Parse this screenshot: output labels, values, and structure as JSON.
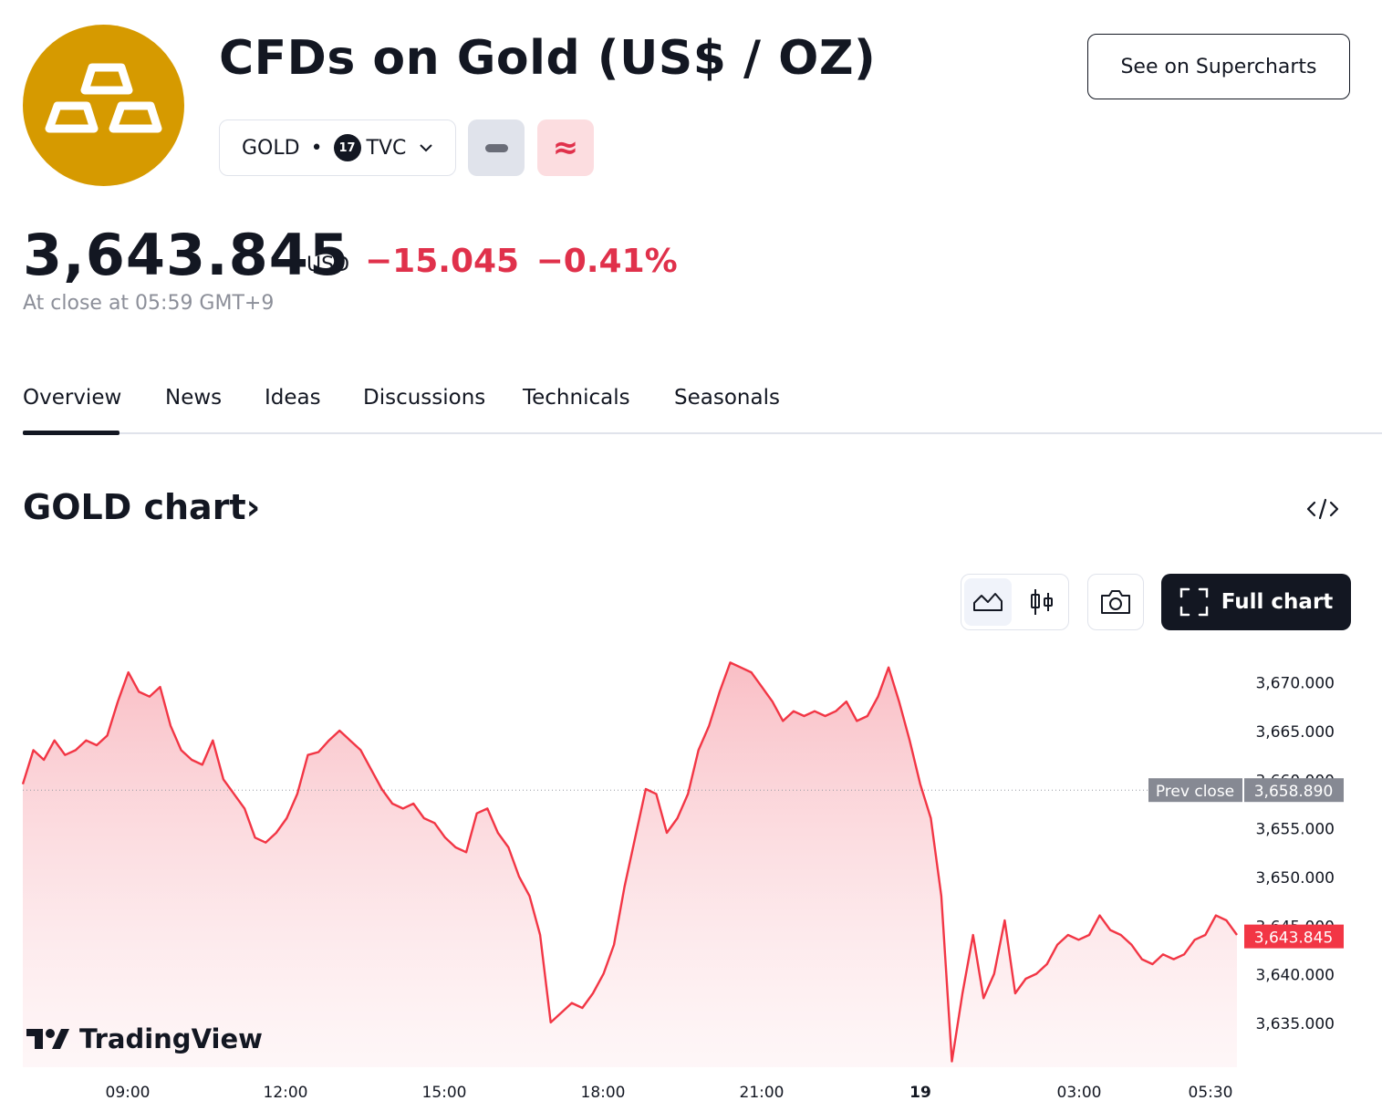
{
  "header": {
    "title": "CFDs on Gold (US$ / OZ)",
    "supercharts_label": "See on Supercharts",
    "symbol": "GOLD",
    "exchange": "TVC",
    "logo_icon": "gold-bars-icon",
    "logo_color": "#D69A00"
  },
  "quote": {
    "price": "3,643.845",
    "currency": "USD",
    "change": "−15.045",
    "change_pct": "−0.41%",
    "close_note": "At close at 05:59 GMT+9",
    "negative_color": "#e0314b"
  },
  "tabs": [
    "Overview",
    "News",
    "Ideas",
    "Discussions",
    "Technicals",
    "Seasonals"
  ],
  "active_tab": "Overview",
  "chart_section": {
    "title": "GOLD chart",
    "title_arrow": "›",
    "full_chart_label": "Full chart",
    "watermark": "TradingView"
  },
  "chart_data": {
    "type": "area",
    "x_ticks": [
      "09:00",
      "12:00",
      "15:00",
      "18:00",
      "21:00",
      "19",
      "03:00",
      "05:30"
    ],
    "y_ticks": [
      "3,670.000",
      "3,665.000",
      "3,660.000",
      "3,655.000",
      "3,650.000",
      "3,645.000",
      "3,640.000",
      "3,635.000"
    ],
    "ylim": [
      3630.4,
      3672.6
    ],
    "prev_close_label": "Prev close",
    "prev_close": "3,658.890",
    "last_label": "3,643.845",
    "series": [
      {
        "values": [
          3659.5,
          3663.0,
          3662.0,
          3664.0,
          3662.5,
          3663.0,
          3664.0,
          3663.5,
          3664.5,
          3668.0,
          3671.0,
          3669.0,
          3668.5,
          3669.5,
          3665.5,
          3663.0,
          3662.0,
          3661.5,
          3664.0,
          3660.0,
          3658.5,
          3657.0,
          3654.0,
          3653.5,
          3654.5,
          3656.0,
          3658.5,
          3662.5,
          3662.8,
          3664.0,
          3665.0,
          3664.0,
          3663.0,
          3661.0,
          3659.0,
          3657.5,
          3657.0,
          3657.5,
          3656.0,
          3655.5,
          3654.0,
          3653.0,
          3652.5,
          3656.5,
          3657.0,
          3654.5,
          3653.0,
          3650.0,
          3648.0,
          3644.0,
          3635.0,
          3636.0,
          3637.0,
          3636.5,
          3638.0,
          3640.0,
          3643.0,
          3649.0,
          3654.0,
          3659.0,
          3658.5,
          3654.5,
          3656.0,
          3658.5,
          3663.0,
          3665.5,
          3669.0,
          3672.0,
          3671.5,
          3671.0,
          3669.5,
          3668.0,
          3666.0,
          3667.0,
          3666.5,
          3667.0,
          3666.5,
          3667.0,
          3668.0,
          3666.0,
          3666.5,
          3668.5,
          3671.5,
          3668.0,
          3664.0,
          3659.5,
          3656.0,
          3648.0,
          3631.0,
          3638.0,
          3644.0,
          3637.5,
          3640.0,
          3645.5,
          3638.0,
          3639.5,
          3640.0,
          3641.0,
          3643.0,
          3644.0,
          3643.5,
          3644.0,
          3646.0,
          3644.5,
          3644.0,
          3643.0,
          3641.5,
          3641.0,
          3642.0,
          3641.5,
          3642.0,
          3643.5,
          3644.0,
          3646.0,
          3645.5,
          3644.0
        ]
      }
    ]
  }
}
